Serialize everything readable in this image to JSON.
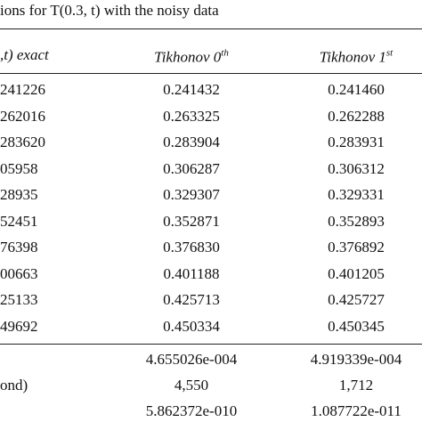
{
  "caption": "ions for T(0.3, t) with the noisy data",
  "table": {
    "header": [
      ",t) exact",
      {
        "text": "Tikhonov 0",
        "sup": "th"
      },
      {
        "text": "Tikhonov 1",
        "sup": "st"
      }
    ],
    "rows": [
      [
        "241226",
        "0.241432",
        "0.241460"
      ],
      [
        "262016",
        "0.263325",
        "0.262288"
      ],
      [
        "283620",
        "0.283904",
        "0.283931"
      ],
      [
        "05958",
        "0.306287",
        "0.306312"
      ],
      [
        "28935",
        "0.329307",
        "0.329331"
      ],
      [
        "52451",
        "0.352871",
        "0.352893"
      ],
      [
        "76398",
        "0.376830",
        "0.376892"
      ],
      [
        "00663",
        "0.401188",
        "0.401205"
      ],
      [
        "25133",
        "0.425713",
        "0.425727"
      ],
      [
        "49692",
        "0.450334",
        "0.450345"
      ]
    ],
    "summary": [
      [
        null,
        "4.655026e-004",
        "4.919339e-004"
      ],
      [
        "ond)",
        "4,550",
        "1,712"
      ],
      [
        null,
        "5.862372e-010",
        "1.087722e-011"
      ]
    ]
  }
}
